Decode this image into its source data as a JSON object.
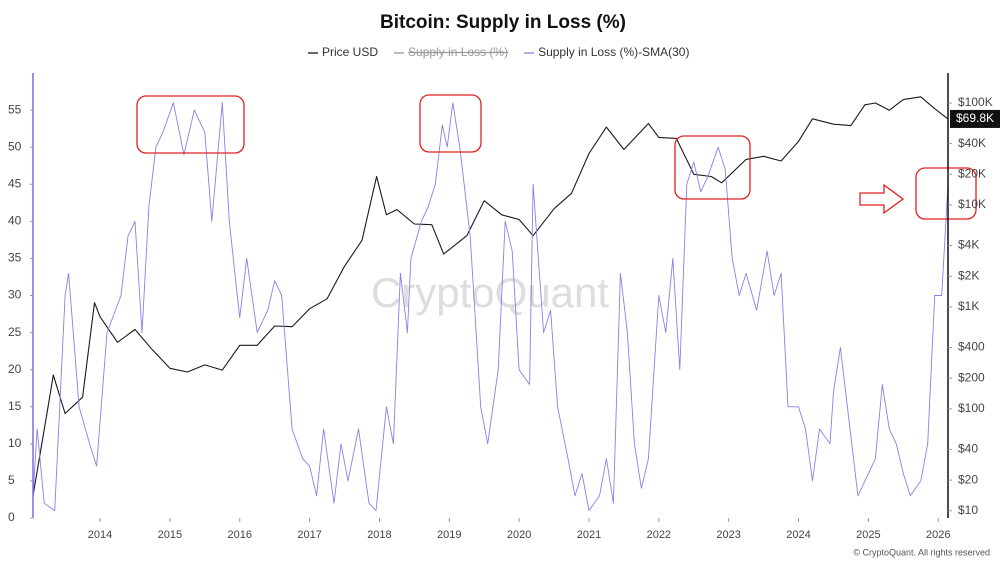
{
  "chart_data": {
    "type": "line",
    "title": "Bitcoin: Supply in Loss (%)",
    "watermark": "CryptoQuant",
    "footer": "© CryptoQuant. All rights reserved",
    "xlim": [
      2013.04,
      2026.14
    ],
    "xticks": [
      2014,
      2015,
      2016,
      2017,
      2018,
      2019,
      2020,
      2021,
      2022,
      2023,
      2024,
      2025,
      2026
    ],
    "ylim": [
      0,
      60
    ],
    "yticks": [
      0,
      5,
      10,
      15,
      20,
      25,
      30,
      35,
      40,
      45,
      50,
      55
    ],
    "y2_log": true,
    "y2lim": [
      8.5,
      197000
    ],
    "y2ticks": [
      {
        "value": 10,
        "label": "$10"
      },
      {
        "value": 20,
        "label": "$20"
      },
      {
        "value": 40,
        "label": "$40"
      },
      {
        "value": 100,
        "label": "$100"
      },
      {
        "value": 200,
        "label": "$200"
      },
      {
        "value": 400,
        "label": "$400"
      },
      {
        "value": 1000,
        "label": "$1K"
      },
      {
        "value": 2000,
        "label": "$2K"
      },
      {
        "value": 4000,
        "label": "$4K"
      },
      {
        "value": 10000,
        "label": "$10K"
      },
      {
        "value": 20000,
        "label": "$20K"
      },
      {
        "value": 40000,
        "label": "$40K"
      },
      {
        "value": 100000,
        "label": "$100K"
      }
    ],
    "hidden_series": [
      {
        "name": "Supply in Loss (%)",
        "color": "#555555"
      }
    ],
    "series": [
      {
        "name": "Price USD",
        "color": "#1a1a1a",
        "axis": "y2",
        "last_value": 69800,
        "last_value_label": "$69.8K",
        "x": [
          2013.04,
          2013.25,
          2013.33,
          2013.5,
          2013.75,
          2013.92,
          2014.0,
          2014.25,
          2014.5,
          2014.75,
          2015.0,
          2015.25,
          2015.5,
          2015.75,
          2016.0,
          2016.25,
          2016.5,
          2016.75,
          2017.0,
          2017.25,
          2017.5,
          2017.75,
          2017.96,
          2018.1,
          2018.25,
          2018.5,
          2018.75,
          2018.92,
          2019.25,
          2019.5,
          2019.75,
          2020.0,
          2020.2,
          2020.5,
          2020.75,
          2021.0,
          2021.25,
          2021.5,
          2021.85,
          2022.0,
          2022.25,
          2022.5,
          2022.75,
          2022.9,
          2023.25,
          2023.5,
          2023.75,
          2024.0,
          2024.2,
          2024.5,
          2024.75,
          2024.95,
          2025.1,
          2025.3,
          2025.5,
          2025.75,
          2025.95,
          2026.14
        ],
        "values": [
          14,
          100,
          215,
          90,
          130,
          1100,
          800,
          450,
          600,
          380,
          250,
          230,
          270,
          240,
          420,
          420,
          650,
          640,
          960,
          1200,
          2500,
          4500,
          19000,
          8000,
          9000,
          6500,
          6400,
          3300,
          5000,
          11000,
          8000,
          7200,
          5000,
          9200,
          13000,
          32000,
          58000,
          35000,
          63000,
          46000,
          45000,
          20000,
          19000,
          16500,
          28000,
          30000,
          27000,
          42000,
          70000,
          62000,
          60000,
          96000,
          100000,
          85000,
          108000,
          115000,
          88000,
          69800
        ]
      },
      {
        "name": "Supply in Loss (%)-SMA(30)",
        "color": "#8b80e8",
        "x": [
          2013.04,
          2013.1,
          2013.2,
          2013.35,
          2013.5,
          2013.55,
          2013.7,
          2013.85,
          2013.95,
          2014.1,
          2014.3,
          2014.4,
          2014.5,
          2014.6,
          2014.7,
          2014.8,
          2014.9,
          2015.05,
          2015.2,
          2015.35,
          2015.5,
          2015.6,
          2015.75,
          2015.85,
          2016.0,
          2016.1,
          2016.25,
          2016.4,
          2016.5,
          2016.6,
          2016.75,
          2016.9,
          2017.0,
          2017.1,
          2017.2,
          2017.35,
          2017.45,
          2017.55,
          2017.7,
          2017.85,
          2017.95,
          2018.1,
          2018.2,
          2018.3,
          2018.4,
          2018.45,
          2018.6,
          2018.7,
          2018.8,
          2018.9,
          2018.97,
          2019.05,
          2019.15,
          2019.3,
          2019.45,
          2019.55,
          2019.7,
          2019.8,
          2019.9,
          2020.0,
          2020.15,
          2020.2,
          2020.35,
          2020.45,
          2020.55,
          2020.7,
          2020.8,
          2020.9,
          2021.0,
          2021.15,
          2021.25,
          2021.35,
          2021.45,
          2021.55,
          2021.65,
          2021.75,
          2021.85,
          2022.0,
          2022.1,
          2022.2,
          2022.3,
          2022.4,
          2022.5,
          2022.6,
          2022.7,
          2022.85,
          2022.95,
          2023.05,
          2023.15,
          2023.25,
          2023.4,
          2023.55,
          2023.65,
          2023.75,
          2023.85,
          2024.0,
          2024.1,
          2024.2,
          2024.3,
          2024.45,
          2024.5,
          2024.6,
          2024.7,
          2024.85,
          2024.95,
          2025.1,
          2025.2,
          2025.3,
          2025.4,
          2025.5,
          2025.6,
          2025.75,
          2025.85,
          2025.95,
          2026.05,
          2026.14
        ],
        "values": [
          3,
          12,
          2,
          1,
          30,
          33,
          15,
          10,
          7,
          25,
          30,
          38,
          40,
          25,
          42,
          50,
          52,
          56,
          49,
          55,
          52,
          40,
          56,
          40,
          27,
          35,
          25,
          28,
          32,
          30,
          12,
          8,
          7,
          3,
          12,
          2,
          10,
          5,
          12,
          2,
          1,
          15,
          10,
          33,
          25,
          35,
          40,
          42,
          45,
          53,
          50,
          56,
          50,
          38,
          15,
          10,
          20,
          40,
          36,
          20,
          18,
          45,
          25,
          28,
          15,
          8,
          3,
          6,
          1,
          3,
          8,
          2,
          33,
          25,
          10,
          4,
          8,
          30,
          25,
          35,
          20,
          45,
          48,
          44,
          46,
          50,
          47,
          35,
          30,
          33,
          28,
          36,
          30,
          33,
          15,
          15,
          12,
          5,
          12,
          10,
          17,
          23,
          15,
          3,
          5,
          8,
          18,
          12,
          10,
          6,
          3,
          5,
          10,
          30,
          30,
          45
        ]
      }
    ]
  }
}
